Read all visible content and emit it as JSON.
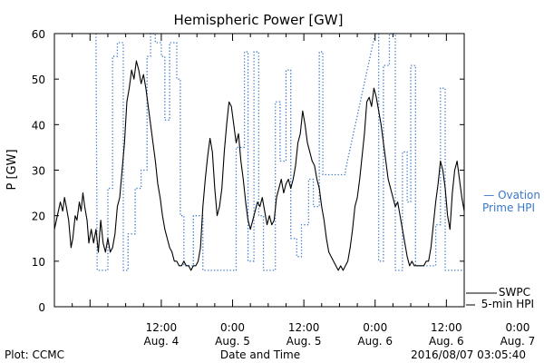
{
  "chart_data": {
    "type": "line",
    "title": "Hemispheric Power [GW]",
    "ylabel": "P [GW]",
    "xlabel": "Date and Time",
    "ylim": [
      0,
      60
    ],
    "xlim": [
      -6,
      63
    ],
    "x_unit": "hours since 2016-08-04 00:00",
    "y_ticks": [
      "0",
      "10",
      "20",
      "30",
      "40",
      "50",
      "60"
    ],
    "x_ticks": [
      {
        "x": 12,
        "line1": "12:00",
        "line2": "Aug. 4"
      },
      {
        "x": 24,
        "line1": "0:00",
        "line2": "Aug. 5"
      },
      {
        "x": 36,
        "line1": "12:00",
        "line2": "Aug. 5"
      },
      {
        "x": 48,
        "line1": "0:00",
        "line2": "Aug. 6"
      },
      {
        "x": 60,
        "line1": "12:00",
        "line2": "Aug. 6"
      },
      {
        "x": 72,
        "line1": "0:00",
        "line2": "Aug. 7"
      }
    ],
    "series": [
      {
        "name": "Ovation Prime HPI",
        "label_line1": "— Ovation",
        "label_line2": "Prime HPI",
        "color": "#3a78c9",
        "style": "dotted",
        "points": [
          [
            1.0,
            60
          ],
          [
            1.2,
            8
          ],
          [
            3.0,
            8
          ],
          [
            3.0,
            26
          ],
          [
            3.8,
            26
          ],
          [
            3.8,
            55
          ],
          [
            4.6,
            55
          ],
          [
            4.6,
            58
          ],
          [
            5.6,
            58
          ],
          [
            5.6,
            8
          ],
          [
            6.4,
            8
          ],
          [
            6.4,
            16
          ],
          [
            7.6,
            16
          ],
          [
            7.6,
            26
          ],
          [
            8.6,
            26
          ],
          [
            8.6,
            30
          ],
          [
            9.6,
            30
          ],
          [
            9.6,
            55
          ],
          [
            10.2,
            55
          ],
          [
            10.2,
            60
          ],
          [
            11.0,
            60
          ],
          [
            11.0,
            58
          ],
          [
            12.0,
            58
          ],
          [
            12.0,
            55
          ],
          [
            12.6,
            55
          ],
          [
            12.6,
            41
          ],
          [
            13.4,
            41
          ],
          [
            13.4,
            58
          ],
          [
            14.6,
            58
          ],
          [
            14.6,
            50
          ],
          [
            15.2,
            50
          ],
          [
            15.2,
            20
          ],
          [
            15.8,
            20
          ],
          [
            15.8,
            9
          ],
          [
            17.4,
            9
          ],
          [
            17.4,
            20
          ],
          [
            19.0,
            20
          ],
          [
            19.0,
            8
          ],
          [
            24.6,
            8
          ],
          [
            24.6,
            35
          ],
          [
            26.0,
            35
          ],
          [
            26.0,
            56
          ],
          [
            26.6,
            56
          ],
          [
            26.6,
            10
          ],
          [
            27.6,
            10
          ],
          [
            27.6,
            56
          ],
          [
            28.4,
            56
          ],
          [
            28.4,
            20
          ],
          [
            29.2,
            20
          ],
          [
            29.2,
            8
          ],
          [
            31.2,
            8
          ],
          [
            31.2,
            45
          ],
          [
            32.0,
            45
          ],
          [
            32.0,
            32
          ],
          [
            33.0,
            32
          ],
          [
            33.0,
            52
          ],
          [
            33.8,
            52
          ],
          [
            33.8,
            15
          ],
          [
            34.8,
            15
          ],
          [
            34.8,
            11
          ],
          [
            35.6,
            11
          ],
          [
            35.6,
            18
          ],
          [
            36.8,
            18
          ],
          [
            36.8,
            28
          ],
          [
            37.6,
            28
          ],
          [
            37.6,
            22
          ],
          [
            38.6,
            22
          ],
          [
            38.6,
            56
          ],
          [
            39.2,
            56
          ],
          [
            39.2,
            29
          ],
          [
            43.0,
            29
          ],
          [
            43.0,
            30
          ],
          [
            48.0,
            60
          ],
          [
            48.6,
            60
          ],
          [
            48.6,
            10
          ],
          [
            49.4,
            10
          ],
          [
            49.4,
            53
          ],
          [
            50.4,
            53
          ],
          [
            50.4,
            60
          ],
          [
            51.4,
            60
          ],
          [
            51.4,
            8
          ],
          [
            52.6,
            8
          ],
          [
            52.6,
            34
          ],
          [
            53.4,
            34
          ],
          [
            53.4,
            23
          ],
          [
            54.0,
            23
          ],
          [
            54.0,
            53
          ],
          [
            54.8,
            53
          ],
          [
            54.8,
            9
          ],
          [
            58.2,
            9
          ],
          [
            58.2,
            18
          ],
          [
            59.0,
            18
          ],
          [
            59.0,
            48
          ],
          [
            59.8,
            48
          ],
          [
            59.8,
            8
          ],
          [
            63.0,
            8
          ]
        ]
      },
      {
        "name": "SWPC 5-min HPI",
        "label_line1": "SWPC",
        "label_line2": "5-min HPI",
        "color": "#000000",
        "style": "solid",
        "points": [
          [
            -6.0,
            17
          ],
          [
            -5.5,
            20
          ],
          [
            -5.0,
            23
          ],
          [
            -4.6,
            21
          ],
          [
            -4.3,
            24
          ],
          [
            -4.0,
            22
          ],
          [
            -3.6,
            19
          ],
          [
            -3.2,
            13
          ],
          [
            -2.9,
            15
          ],
          [
            -2.5,
            20
          ],
          [
            -2.2,
            19
          ],
          [
            -1.8,
            23
          ],
          [
            -1.5,
            21
          ],
          [
            -1.2,
            25
          ],
          [
            -0.9,
            22
          ],
          [
            -0.5,
            19
          ],
          [
            -0.2,
            14
          ],
          [
            0.2,
            17
          ],
          [
            0.6,
            14
          ],
          [
            1.0,
            17
          ],
          [
            1.4,
            12
          ],
          [
            1.8,
            19
          ],
          [
            2.2,
            14
          ],
          [
            2.6,
            12
          ],
          [
            3.0,
            15
          ],
          [
            3.4,
            12
          ],
          [
            3.8,
            13
          ],
          [
            4.2,
            16
          ],
          [
            4.6,
            22
          ],
          [
            5.0,
            24
          ],
          [
            5.4,
            30
          ],
          [
            5.8,
            36
          ],
          [
            6.2,
            45
          ],
          [
            6.6,
            48
          ],
          [
            7.0,
            52
          ],
          [
            7.4,
            50
          ],
          [
            7.8,
            54
          ],
          [
            8.2,
            52
          ],
          [
            8.6,
            49
          ],
          [
            9.0,
            51
          ],
          [
            9.4,
            48
          ],
          [
            9.8,
            44
          ],
          [
            10.2,
            40
          ],
          [
            10.6,
            36
          ],
          [
            11.0,
            32
          ],
          [
            11.4,
            27
          ],
          [
            11.8,
            24
          ],
          [
            12.2,
            20
          ],
          [
            12.6,
            17
          ],
          [
            13.0,
            15
          ],
          [
            13.4,
            13
          ],
          [
            13.8,
            12
          ],
          [
            14.2,
            10
          ],
          [
            14.6,
            10
          ],
          [
            15.0,
            9
          ],
          [
            15.4,
            9
          ],
          [
            15.8,
            10
          ],
          [
            16.2,
            9
          ],
          [
            16.6,
            9
          ],
          [
            17.0,
            8
          ],
          [
            17.4,
            9
          ],
          [
            17.8,
            9
          ],
          [
            18.2,
            10
          ],
          [
            18.6,
            13
          ],
          [
            19.0,
            22
          ],
          [
            19.4,
            28
          ],
          [
            19.8,
            33
          ],
          [
            20.2,
            37
          ],
          [
            20.6,
            34
          ],
          [
            21.0,
            26
          ],
          [
            21.4,
            20
          ],
          [
            21.8,
            22
          ],
          [
            22.2,
            26
          ],
          [
            22.6,
            34
          ],
          [
            23.0,
            40
          ],
          [
            23.4,
            45
          ],
          [
            23.8,
            44
          ],
          [
            24.2,
            40
          ],
          [
            24.6,
            36
          ],
          [
            25.0,
            38
          ],
          [
            25.4,
            32
          ],
          [
            25.8,
            28
          ],
          [
            26.2,
            23
          ],
          [
            26.6,
            19
          ],
          [
            27.0,
            17
          ],
          [
            27.4,
            19
          ],
          [
            27.8,
            21
          ],
          [
            28.2,
            23
          ],
          [
            28.6,
            22
          ],
          [
            29.0,
            24
          ],
          [
            29.4,
            21
          ],
          [
            29.8,
            18
          ],
          [
            30.2,
            20
          ],
          [
            30.6,
            18
          ],
          [
            31.0,
            19
          ],
          [
            31.4,
            24
          ],
          [
            31.8,
            26
          ],
          [
            32.2,
            28
          ],
          [
            32.6,
            25
          ],
          [
            33.0,
            27
          ],
          [
            33.4,
            28
          ],
          [
            33.8,
            26
          ],
          [
            34.2,
            28
          ],
          [
            34.6,
            31
          ],
          [
            35.0,
            36
          ],
          [
            35.4,
            38
          ],
          [
            35.8,
            43
          ],
          [
            36.2,
            40
          ],
          [
            36.6,
            36
          ],
          [
            37.0,
            34
          ],
          [
            37.4,
            32
          ],
          [
            37.8,
            31
          ],
          [
            38.2,
            28
          ],
          [
            38.6,
            26
          ],
          [
            39.0,
            22
          ],
          [
            39.4,
            19
          ],
          [
            39.8,
            15
          ],
          [
            40.2,
            12
          ],
          [
            40.6,
            11
          ],
          [
            41.0,
            10
          ],
          [
            41.4,
            9
          ],
          [
            41.8,
            8
          ],
          [
            42.2,
            9
          ],
          [
            42.6,
            8
          ],
          [
            43.0,
            9
          ],
          [
            43.4,
            10
          ],
          [
            43.8,
            13
          ],
          [
            44.2,
            17
          ],
          [
            44.6,
            22
          ],
          [
            45.0,
            24
          ],
          [
            45.4,
            28
          ],
          [
            45.8,
            33
          ],
          [
            46.2,
            38
          ],
          [
            46.6,
            45
          ],
          [
            47.0,
            46
          ],
          [
            47.4,
            44
          ],
          [
            47.8,
            48
          ],
          [
            48.2,
            46
          ],
          [
            48.6,
            43
          ],
          [
            49.0,
            40
          ],
          [
            49.4,
            36
          ],
          [
            49.8,
            32
          ],
          [
            50.2,
            28
          ],
          [
            50.6,
            26
          ],
          [
            51.0,
            24
          ],
          [
            51.4,
            22
          ],
          [
            51.8,
            23
          ],
          [
            52.2,
            20
          ],
          [
            52.6,
            17
          ],
          [
            53.0,
            14
          ],
          [
            53.4,
            11
          ],
          [
            53.8,
            9
          ],
          [
            54.2,
            10
          ],
          [
            54.6,
            9
          ],
          [
            55.0,
            9
          ],
          [
            55.4,
            9
          ],
          [
            55.8,
            9
          ],
          [
            56.2,
            9
          ],
          [
            56.6,
            10
          ],
          [
            57.0,
            10
          ],
          [
            57.4,
            13
          ],
          [
            57.8,
            18
          ],
          [
            58.2,
            23
          ],
          [
            58.6,
            27
          ],
          [
            59.0,
            32
          ],
          [
            59.4,
            30
          ],
          [
            59.8,
            26
          ],
          [
            60.2,
            20
          ],
          [
            60.6,
            17
          ],
          [
            61.0,
            25
          ],
          [
            61.4,
            30
          ],
          [
            61.8,
            32
          ],
          [
            62.2,
            28
          ],
          [
            62.6,
            24
          ],
          [
            63.0,
            21
          ]
        ]
      }
    ]
  },
  "footer": {
    "plot_credit": "Plot: CCMC",
    "timestamp": "2016/08/07 03:05:40"
  }
}
